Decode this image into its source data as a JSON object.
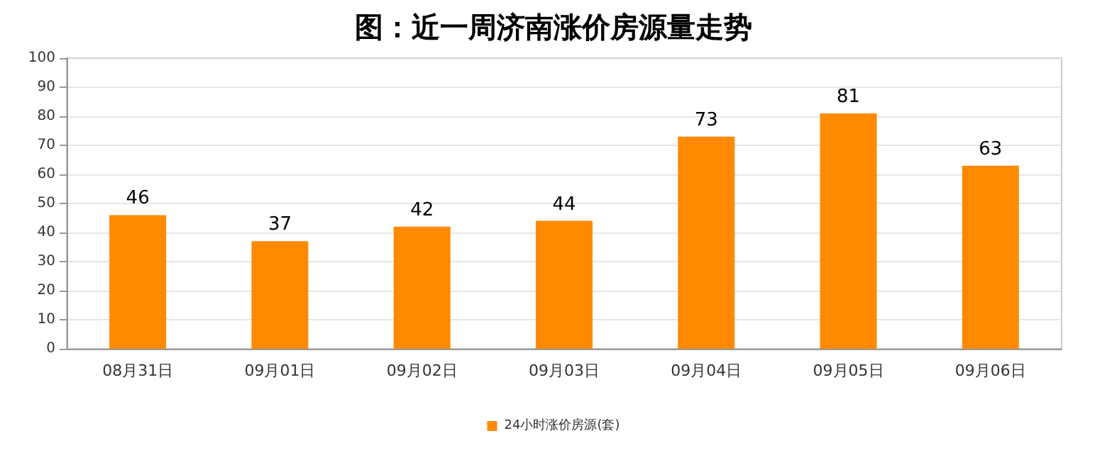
{
  "chart_data": {
    "type": "bar",
    "title": "图：近一周济南涨价房源量走势",
    "categories": [
      "08月31日",
      "09月01日",
      "09月02日",
      "09月03日",
      "09月04日",
      "09月05日",
      "09月06日"
    ],
    "series": [
      {
        "name": "24小时涨价房源(套)",
        "color": "#ff8a00",
        "values": [
          46,
          37,
          42,
          44,
          73,
          81,
          63
        ]
      }
    ],
    "ylim": [
      0,
      100
    ],
    "yticks": [
      0,
      10,
      20,
      30,
      40,
      50,
      60,
      70,
      80,
      90,
      100
    ],
    "grid": "y",
    "legend": "bottom",
    "data_labels": true
  }
}
